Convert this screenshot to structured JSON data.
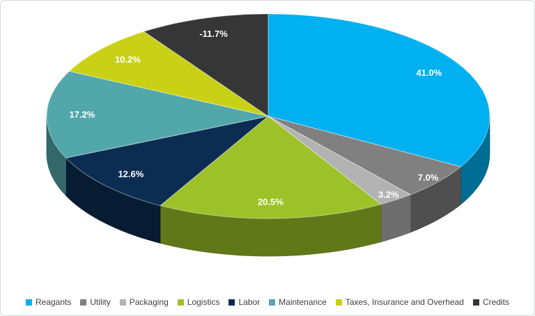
{
  "chart_data": {
    "type": "pie",
    "style": "3d",
    "title": "",
    "categories": [
      "Reagants",
      "Utility",
      "Packaging",
      "Logistics",
      "Labor",
      "Maintenance",
      "Taxes, Insurance and Overhead",
      "Credits"
    ],
    "values": [
      41.0,
      7.0,
      3.2,
      20.5,
      12.6,
      17.2,
      10.2,
      -11.7
    ],
    "data_labels": [
      "41.0%",
      "7.0%",
      "3.2%",
      "20.5%",
      "12.6%",
      "17.2%",
      "10.2%",
      "-11.7%"
    ],
    "colors": [
      "#00b0f0",
      "#808080",
      "#b2b2b2",
      "#9dc229",
      "#0c2d52",
      "#52a7aa",
      "#c9d116",
      "#363636"
    ],
    "label_text_color": "#ffffff",
    "legend_position": "bottom",
    "legend_text_color": "#404040",
    "start_angle": 0,
    "direction": "clockwise",
    "angle_basis": "absolute_values",
    "grid": false
  }
}
